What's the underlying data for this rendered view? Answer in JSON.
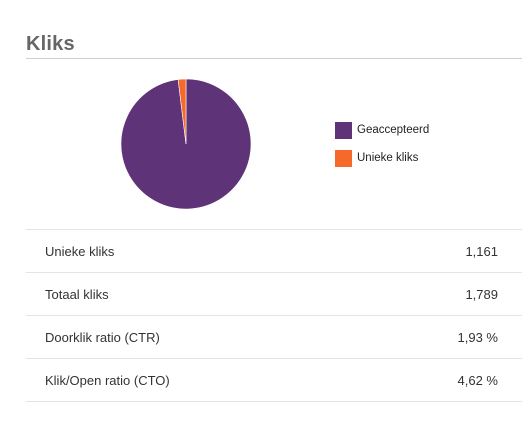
{
  "section": {
    "title": "Kliks"
  },
  "colors": {
    "accepted": "#5e3378",
    "unique": "#f5692b"
  },
  "chart_data": {
    "type": "pie",
    "series": [
      {
        "name": "Geaccepteerd",
        "color": "#5e3378"
      },
      {
        "name": "Unieke kliks",
        "color": "#f5692b"
      }
    ],
    "values": [
      98.07,
      1.93
    ],
    "legend_position": "right"
  },
  "stats": [
    {
      "label": "Unieke kliks",
      "value": "1,161"
    },
    {
      "label": "Totaal kliks",
      "value": "1,789"
    },
    {
      "label": "Doorklik ratio (CTR)",
      "value": "1,93 %"
    },
    {
      "label": "Klik/Open ratio (CTO)",
      "value": "4,62 %"
    }
  ]
}
